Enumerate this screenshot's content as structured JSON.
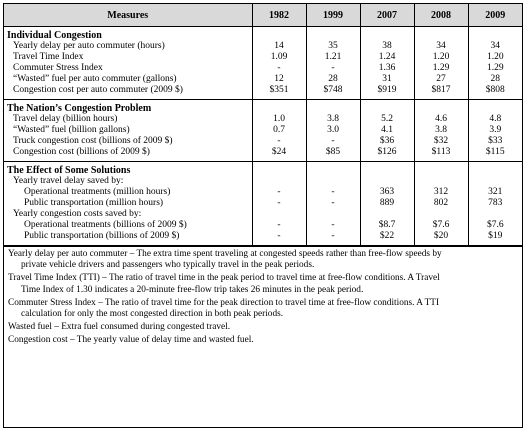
{
  "table": {
    "header": {
      "measures": "Measures",
      "years": [
        "1982",
        "1999",
        "2007",
        "2008",
        "2009"
      ]
    },
    "sections": [
      {
        "title": "Individual Congestion",
        "rows": [
          {
            "label": "Yearly delay per auto commuter (hours)",
            "values": [
              "14",
              "35",
              "38",
              "34",
              "34"
            ]
          },
          {
            "label": "Travel Time Index",
            "values": [
              "1.09",
              "1.21",
              "1.24",
              "1.20",
              "1.20"
            ]
          },
          {
            "label": "Commuter Stress Index",
            "values": [
              "-",
              "-",
              "1.36",
              "1.29",
              "1.29"
            ]
          },
          {
            "label": "“Wasted” fuel per auto commuter (gallons)",
            "values": [
              "12",
              "28",
              "31",
              "27",
              "28"
            ]
          },
          {
            "label": "Congestion cost per auto commuter (2009 $)",
            "values": [
              "$351",
              "$748",
              "$919",
              "$817",
              "$808"
            ]
          }
        ]
      },
      {
        "title": "The Nation’s Congestion Problem",
        "rows": [
          {
            "label": "Travel delay (billion hours)",
            "values": [
              "1.0",
              "3.8",
              "5.2",
              "4.6",
              "4.8"
            ]
          },
          {
            "label": "“Wasted” fuel (billion gallons)",
            "values": [
              "0.7",
              "3.0",
              "4.1",
              "3.8",
              "3.9"
            ]
          },
          {
            "label": "Truck congestion cost (billions of 2009 $)",
            "values": [
              "-",
              "-",
              "$36",
              "$32",
              "$33"
            ]
          },
          {
            "label": "Congestion cost (billions of 2009 $)",
            "values": [
              "$24",
              "$85",
              "$126",
              "$113",
              "$115"
            ]
          }
        ]
      },
      {
        "title": "The Effect of Some Solutions",
        "groups": [
          {
            "title": "Yearly travel delay saved by:",
            "rows": [
              {
                "label": "Operational treatments (million hours)",
                "values": [
                  "-",
                  "-",
                  "363",
                  "312",
                  "321"
                ]
              },
              {
                "label": "Public transportation (million hours)",
                "values": [
                  "-",
                  "-",
                  "889",
                  "802",
                  "783"
                ]
              }
            ]
          },
          {
            "title": "Yearly congestion costs saved by:",
            "rows": [
              {
                "label": "Operational treatments (billions of 2009 $)",
                "values": [
                  "-",
                  "-",
                  "$8.7",
                  "$7.6",
                  "$7.6"
                ]
              },
              {
                "label": "Public transportation (billions of 2009 $)",
                "values": [
                  "-",
                  "-",
                  "$22",
                  "$20",
                  "$19"
                ]
              }
            ]
          }
        ]
      }
    ]
  },
  "definitions": [
    {
      "first": "Yearly delay per auto commuter – The extra time spent traveling at congested speeds rather than free-flow speeds by",
      "rest": "private vehicle drivers and passengers who typically travel in the peak periods."
    },
    {
      "first": "Travel Time Index (TTI) – The ratio of travel time in the peak period to travel time at free-flow conditions. A Travel",
      "rest": "Time Index of 1.30 indicates a 20-minute free-flow trip takes 26 minutes in the peak period."
    },
    {
      "first": "Commuter Stress Index – The ratio of travel time for the peak direction to travel time at free-flow conditions. A TTI",
      "rest": "calculation for only the most congested direction in both peak periods."
    },
    {
      "first": "Wasted fuel – Extra fuel consumed during congested travel.",
      "rest": ""
    },
    {
      "first": "Congestion cost – The yearly value of delay time and wasted fuel.",
      "rest": ""
    }
  ]
}
